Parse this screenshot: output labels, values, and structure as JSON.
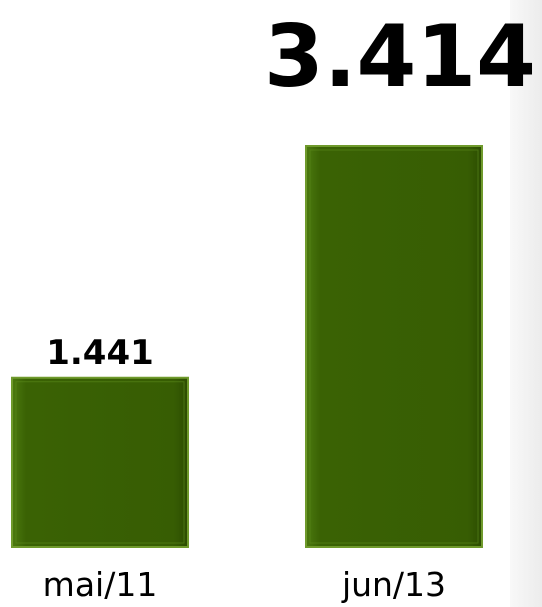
{
  "chart_data": {
    "type": "bar",
    "title": "",
    "xlabel": "",
    "ylabel": "",
    "categories": [
      "mai/11",
      "jun/13"
    ],
    "values": [
      1441,
      3414
    ],
    "value_labels": [
      "1.441",
      "3.414"
    ],
    "ylim": [
      0,
      3414
    ],
    "grid": false,
    "legend": "none",
    "bar_color": "#3a6204",
    "bar_edge_color": "#6f9a2c"
  }
}
